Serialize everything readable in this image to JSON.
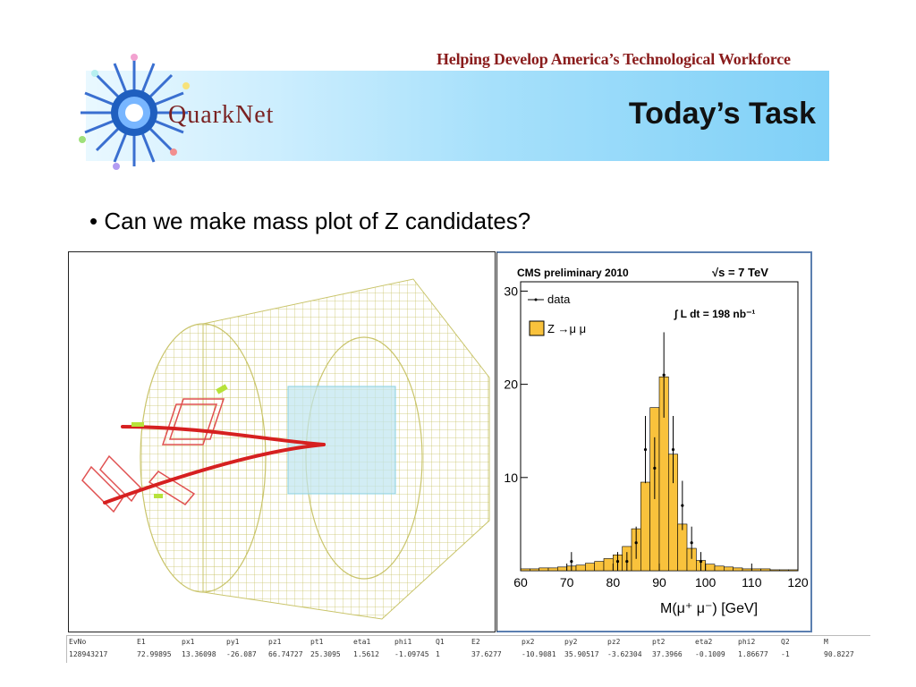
{
  "header": {
    "tagline": "Helping Develop America’s Technological Workforce",
    "brand": "QuarkNet",
    "title": "Today’s Task"
  },
  "bullet": {
    "marker": "•",
    "text": "Can we make mass plot of Z candidates?"
  },
  "colors": {
    "tagline": "#8a1c1c",
    "banner_start": "#e9f8ff",
    "banner_end": "#7fd0f7",
    "histogram_fill": "#f9c23c",
    "detector_mesh": "#c9c46a",
    "muon_track": "#d62020",
    "chamber": "#e05050"
  },
  "chart_data": {
    "type": "bar",
    "title": "CMS preliminary 2010",
    "energy_label": "√s = 7 TeV",
    "luminosity_label": "∫ L dt = 198 nb⁻¹",
    "legend": [
      "data",
      "Z →μ μ"
    ],
    "legend_placement": "top-left",
    "xlabel": "M(μ⁺ μ⁻) [GeV]",
    "xlim": [
      60,
      120
    ],
    "ylim": [
      0,
      31
    ],
    "x_ticks": [
      60,
      70,
      80,
      90,
      100,
      110,
      120
    ],
    "y_ticks": [
      10,
      20,
      30
    ],
    "bin_edges": [
      60,
      62,
      64,
      66,
      68,
      70,
      72,
      74,
      76,
      78,
      80,
      82,
      84,
      86,
      88,
      90,
      92,
      94,
      96,
      98,
      100,
      102,
      104,
      106,
      108,
      110,
      112,
      114,
      116,
      118,
      120
    ],
    "series": [
      {
        "name": "Z →μ μ",
        "values": [
          0.2,
          0.2,
          0.3,
          0.3,
          0.4,
          0.5,
          0.6,
          0.8,
          1.0,
          1.3,
          1.7,
          2.6,
          4.5,
          9.5,
          17.5,
          20.8,
          12.5,
          5.0,
          2.4,
          1.1,
          0.7,
          0.5,
          0.4,
          0.3,
          0.2,
          0.2,
          0.2,
          0.1,
          0.1,
          0.1
        ]
      },
      {
        "name": "data",
        "values": [
          0,
          0,
          0,
          0,
          0,
          1,
          0,
          0,
          0,
          0,
          1,
          1,
          3,
          13,
          11,
          21,
          13,
          7,
          3,
          1,
          0,
          0,
          0,
          0,
          0,
          0,
          0,
          0,
          0,
          0
        ]
      }
    ]
  },
  "event_table": {
    "headers": [
      "EvNo",
      "E1",
      "px1",
      "py1",
      "pz1",
      "pt1",
      "eta1",
      "phi1",
      "Q1",
      "E2",
      "px2",
      "py2",
      "pz2",
      "pt2",
      "eta2",
      "phi2",
      "Q2",
      "M"
    ],
    "row": [
      "128943217",
      "72.99895",
      "13.36098",
      "-26.087",
      "66.74727",
      "25.3095",
      "1.5612",
      "-1.09745",
      "1",
      "37.6277",
      "-10.9081",
      "35.90517",
      "-3.62304",
      "37.3966",
      "-0.1009",
      "1.86677",
      "-1",
      "90.8227"
    ]
  }
}
